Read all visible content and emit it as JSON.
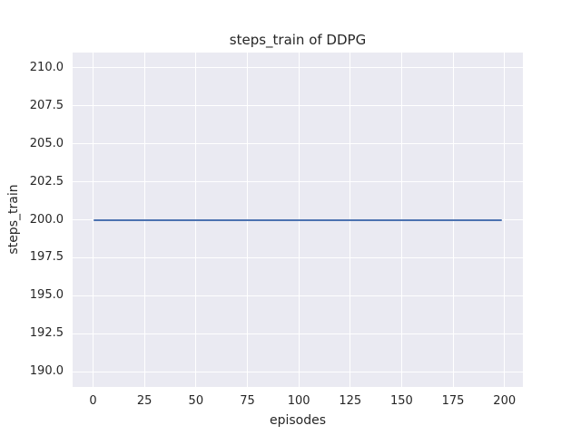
{
  "chart_data": {
    "type": "line",
    "title": "steps_train of DDPG",
    "xlabel": "episodes",
    "ylabel": "steps_train",
    "x_ticks": [
      0,
      25,
      50,
      75,
      100,
      125,
      150,
      175,
      200
    ],
    "y_ticks": [
      190.0,
      192.5,
      195.0,
      197.5,
      200.0,
      202.5,
      205.0,
      207.5,
      210.0
    ],
    "y_tick_decimals": 1,
    "xlim": [
      -9.95,
      208.95
    ],
    "ylim": [
      189.0,
      211.0
    ],
    "grid": true,
    "legend": "none",
    "plot_background": "#eaeaf2",
    "grid_color": "#ffffff",
    "series": [
      {
        "name": "steps_train",
        "color": "#4c72b0",
        "x": [
          0,
          199
        ],
        "y": [
          200,
          200
        ],
        "constant_y": 200,
        "x_start": 0,
        "x_end": 199
      }
    ]
  }
}
